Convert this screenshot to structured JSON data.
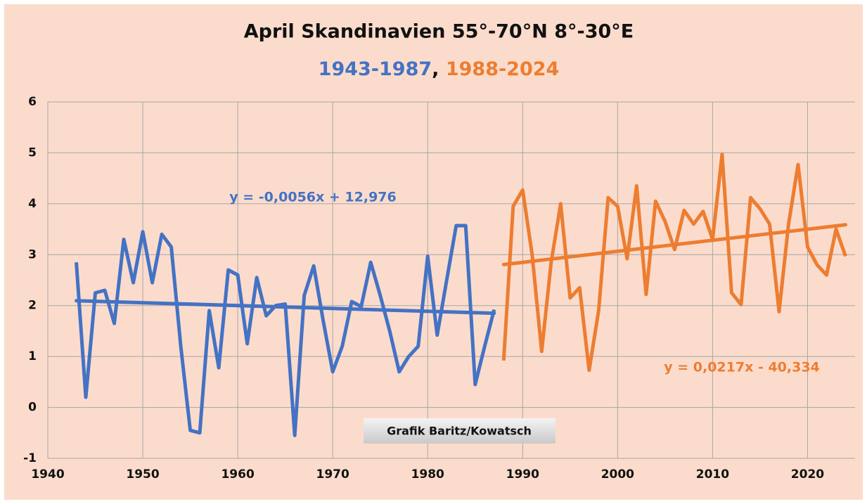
{
  "chart_data": {
    "type": "line",
    "title": "April Skandinavien 55°-70°N 8°-30°E",
    "subtitle_separator": ",",
    "xlim": [
      1940,
      2025
    ],
    "xticks": [
      1940,
      1950,
      1960,
      1970,
      1980,
      1990,
      2000,
      2010,
      2020
    ],
    "ylim": [
      -1,
      6
    ],
    "yticks": [
      -1,
      0,
      1,
      2,
      3,
      4,
      5,
      6
    ],
    "grid": true,
    "credit": "Grafik Baritz/Kowatsch",
    "series": [
      {
        "name": "1943-1987",
        "color": "#4472c4",
        "x": [
          1943,
          1944,
          1945,
          1946,
          1947,
          1948,
          1949,
          1950,
          1951,
          1952,
          1953,
          1954,
          1955,
          1956,
          1957,
          1958,
          1959,
          1960,
          1961,
          1962,
          1963,
          1964,
          1965,
          1966,
          1967,
          1968,
          1969,
          1970,
          1971,
          1972,
          1973,
          1974,
          1975,
          1976,
          1977,
          1978,
          1979,
          1980,
          1981,
          1982,
          1983,
          1984,
          1985,
          1986,
          1987
        ],
        "values": [
          2.85,
          0.2,
          2.25,
          2.3,
          1.65,
          3.3,
          2.45,
          3.45,
          2.45,
          3.4,
          3.15,
          1.2,
          -0.45,
          -0.5,
          1.9,
          0.78,
          2.7,
          2.6,
          1.25,
          2.55,
          1.8,
          2.0,
          2.03,
          -0.55,
          2.2,
          2.78,
          1.7,
          0.7,
          1.2,
          2.08,
          1.98,
          2.85,
          2.2,
          1.5,
          0.7,
          1.0,
          1.2,
          2.97,
          1.42,
          2.5,
          3.57,
          3.57,
          0.45,
          1.2,
          1.92
        ],
        "trendline": {
          "slope": -0.0056,
          "intercept": 12.976,
          "label": "y = -0,0056x + 12,976"
        }
      },
      {
        "name": "1988-2024",
        "color": "#ed7d31",
        "x": [
          1988,
          1989,
          1990,
          1991,
          1992,
          1993,
          1994,
          1995,
          1996,
          1997,
          1998,
          1999,
          2000,
          2001,
          2002,
          2003,
          2004,
          2005,
          2006,
          2007,
          2008,
          2009,
          2010,
          2011,
          2012,
          2013,
          2014,
          2015,
          2016,
          2017,
          2018,
          2019,
          2020,
          2021,
          2022,
          2023,
          2024
        ],
        "values": [
          0.92,
          3.95,
          4.27,
          3.0,
          1.1,
          2.85,
          4.0,
          2.15,
          2.35,
          0.73,
          1.9,
          4.12,
          3.95,
          2.92,
          4.35,
          2.22,
          4.05,
          3.65,
          3.1,
          3.87,
          3.6,
          3.85,
          3.3,
          4.97,
          2.25,
          2.02,
          4.12,
          3.9,
          3.6,
          1.88,
          3.6,
          4.77,
          3.15,
          2.8,
          2.6,
          3.5,
          2.97
        ],
        "trendline": {
          "slope": 0.0217,
          "intercept": -40.334,
          "label": "y = 0,0217x - 40,334"
        }
      }
    ]
  }
}
